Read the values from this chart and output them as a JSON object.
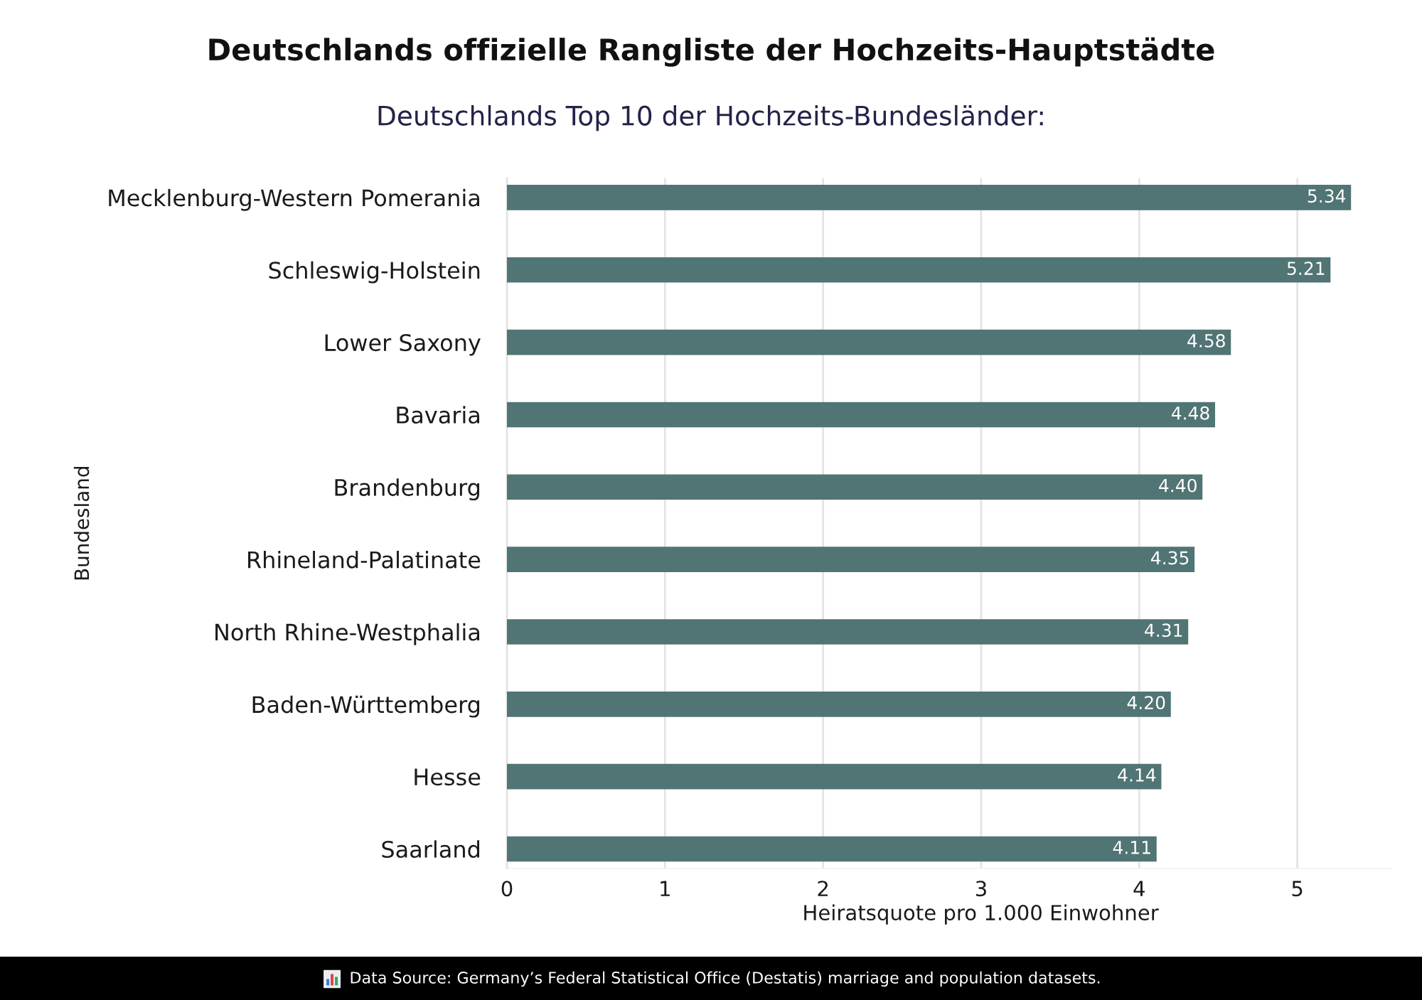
{
  "chart_data": {
    "type": "bar",
    "orientation": "horizontal",
    "title": "Deutschlands offizielle Rangliste der Hochzeits-Hauptstädte",
    "subtitle": "Deutschlands Top 10 der Hochzeits-Bundesländer:",
    "xlabel": "Heiratsquote pro 1.000 Einwohner",
    "ylabel": "Bundesland",
    "categories": [
      "Mecklenburg-Western Pomerania",
      "Schleswig-Holstein",
      "Lower Saxony",
      "Bavaria",
      "Brandenburg",
      "Rhineland-Palatinate",
      "North Rhine-Westphalia",
      "Baden-Württemberg",
      "Hesse",
      "Saarland"
    ],
    "values": [
      5.34,
      5.21,
      4.58,
      4.48,
      4.4,
      4.35,
      4.31,
      4.2,
      4.14,
      4.11
    ],
    "value_labels": [
      "5.34",
      "5.21",
      "4.58",
      "4.48",
      "4.40",
      "4.35",
      "4.31",
      "4.20",
      "4.14",
      "4.11"
    ],
    "color": "#517474",
    "xlim": [
      0,
      5.6
    ],
    "xticks": [
      0,
      1,
      2,
      3,
      4,
      5
    ],
    "grid": "x",
    "annotations": [
      "Data Source: Germany’s Federal Statistical Office (Destatis) marriage and population datasets."
    ]
  }
}
